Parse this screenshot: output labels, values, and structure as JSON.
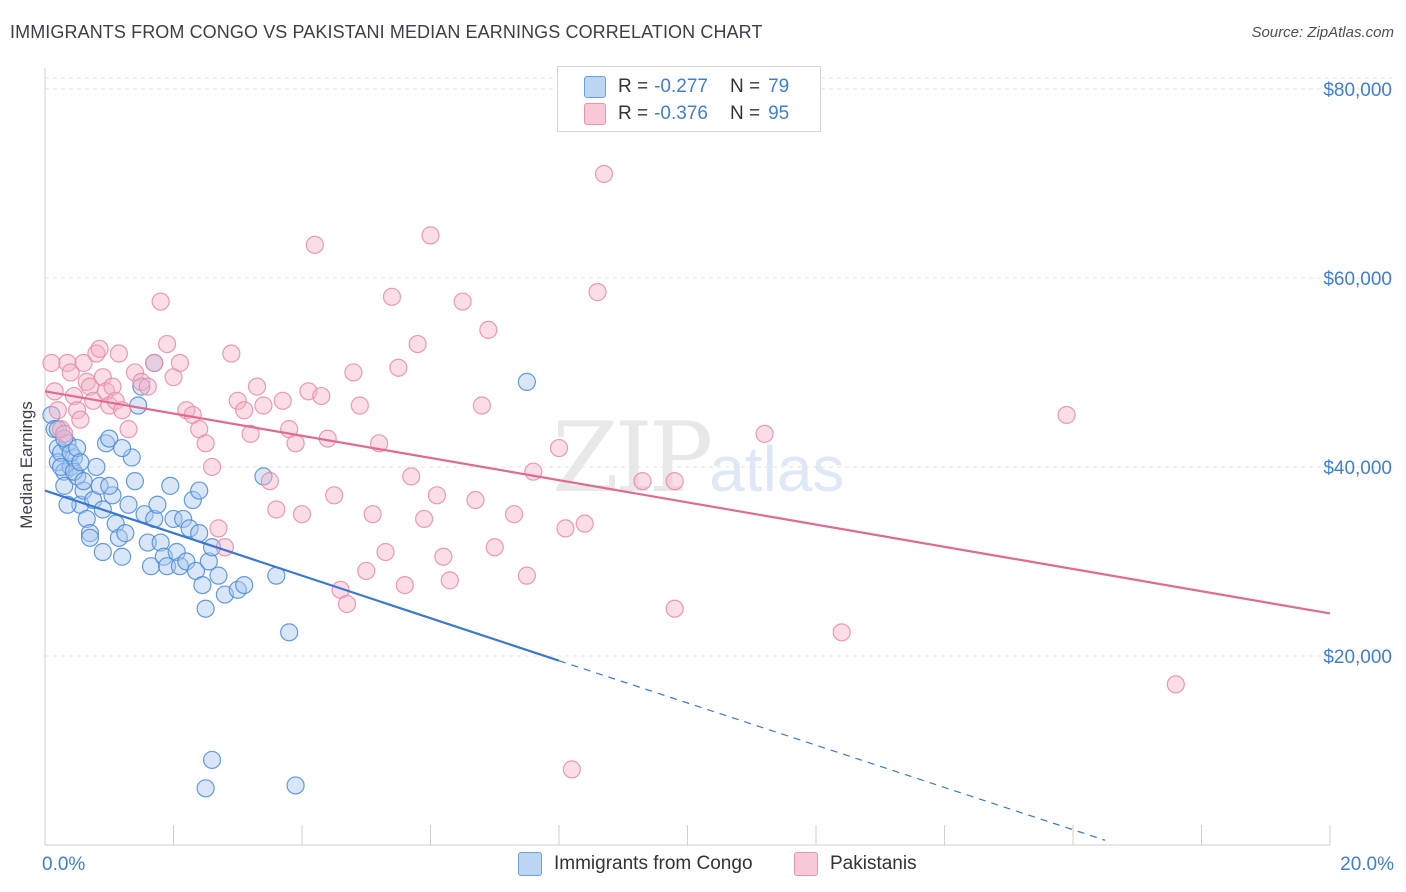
{
  "title": "IMMIGRANTS FROM CONGO VS PAKISTANI MEDIAN EARNINGS CORRELATION CHART",
  "source": "Source: ZipAtlas.com",
  "watermark": {
    "zip": "ZIP",
    "atlas": "atlas"
  },
  "legend": {
    "rows": [
      {
        "r_label": "R =",
        "r_value": "-0.277",
        "n_label": "N =",
        "n_value": "79",
        "color": "#a9c8ef"
      },
      {
        "r_label": "R =",
        "r_value": "-0.376",
        "n_label": "N =",
        "n_value": "95",
        "color": "#f4b3c8"
      }
    ]
  },
  "bottom_legend": {
    "congo": "Immigrants from Congo",
    "pakistanis": "Pakistanis"
  },
  "chart_data": {
    "type": "scatter",
    "ylabel": "Median Earnings",
    "xlim": [
      0,
      20
    ],
    "ylim": [
      0,
      82000
    ],
    "y_ticks": [
      {
        "value": 20000,
        "label": "$20,000"
      },
      {
        "value": 40000,
        "label": "$40,000"
      },
      {
        "value": 60000,
        "label": "$60,000"
      },
      {
        "value": 80000,
        "label": "$80,000"
      }
    ],
    "x_tick_labels": [
      {
        "value": 0,
        "label": "0.0%"
      },
      {
        "value": 20,
        "label": "20.0%"
      }
    ],
    "x_minor_ticks": [
      2,
      4,
      6,
      8,
      10,
      12,
      14,
      16,
      18,
      20
    ],
    "grid": true,
    "series": [
      {
        "name": "Immigrants from Congo",
        "color": "#4a8ad8",
        "fill": "#a9c8ef",
        "trend": {
          "x0": 0,
          "y0": 37500,
          "x1": 8,
          "y1": 19500,
          "dash_to_x": 16.5,
          "dash_to_y": 500,
          "color": "#3a78d4"
        },
        "points": [
          [
            0.1,
            45500
          ],
          [
            0.15,
            44000
          ],
          [
            0.2,
            42000
          ],
          [
            0.2,
            40500
          ],
          [
            0.25,
            41500
          ],
          [
            0.3,
            39500
          ],
          [
            0.3,
            38000
          ],
          [
            0.35,
            42500
          ],
          [
            0.4,
            40000
          ],
          [
            0.45,
            41000
          ],
          [
            0.5,
            39000
          ],
          [
            0.55,
            36000
          ],
          [
            0.6,
            37500
          ],
          [
            0.65,
            34500
          ],
          [
            0.7,
            33000
          ],
          [
            0.75,
            36500
          ],
          [
            0.8,
            40000
          ],
          [
            0.85,
            38000
          ],
          [
            0.9,
            35500
          ],
          [
            0.95,
            42500
          ],
          [
            1.0,
            43000
          ],
          [
            1.05,
            37000
          ],
          [
            1.1,
            34000
          ],
          [
            1.15,
            32500
          ],
          [
            1.2,
            30500
          ],
          [
            1.25,
            33000
          ],
          [
            1.3,
            36000
          ],
          [
            1.35,
            41000
          ],
          [
            1.4,
            38500
          ],
          [
            1.45,
            46500
          ],
          [
            1.5,
            48500
          ],
          [
            1.55,
            35000
          ],
          [
            1.6,
            32000
          ],
          [
            1.65,
            29500
          ],
          [
            1.7,
            34500
          ],
          [
            1.75,
            36000
          ],
          [
            1.8,
            32000
          ],
          [
            1.85,
            30500
          ],
          [
            1.9,
            29500
          ],
          [
            1.95,
            38000
          ],
          [
            2.0,
            34500
          ],
          [
            2.05,
            31000
          ],
          [
            2.1,
            29500
          ],
          [
            2.15,
            34500
          ],
          [
            2.2,
            30000
          ],
          [
            2.25,
            33500
          ],
          [
            2.3,
            36500
          ],
          [
            2.35,
            29000
          ],
          [
            2.4,
            33000
          ],
          [
            2.45,
            27500
          ],
          [
            2.5,
            25000
          ],
          [
            2.55,
            30000
          ],
          [
            2.6,
            31500
          ],
          [
            2.7,
            28500
          ],
          [
            2.8,
            26500
          ],
          [
            0.2,
            44000
          ],
          [
            0.3,
            43000
          ],
          [
            0.25,
            40000
          ],
          [
            0.4,
            41500
          ],
          [
            0.45,
            39500
          ],
          [
            0.5,
            42000
          ],
          [
            0.55,
            40500
          ],
          [
            0.6,
            38500
          ],
          [
            0.35,
            36000
          ],
          [
            0.7,
            32500
          ],
          [
            0.9,
            31000
          ],
          [
            1.0,
            38000
          ],
          [
            1.2,
            42000
          ],
          [
            1.7,
            51000
          ],
          [
            2.4,
            37500
          ],
          [
            3.0,
            27000
          ],
          [
            2.6,
            9000
          ],
          [
            2.5,
            6000
          ],
          [
            3.1,
            27500
          ],
          [
            3.4,
            39000
          ],
          [
            3.6,
            28500
          ],
          [
            3.8,
            22500
          ],
          [
            3.9,
            6300
          ],
          [
            7.5,
            49000
          ]
        ]
      },
      {
        "name": "Pakistanis",
        "color": "#e98aa8",
        "fill": "#f4b3c8",
        "trend": {
          "x0": 0,
          "y0": 48000,
          "x1": 20,
          "y1": 24500,
          "color": "#e06a92"
        },
        "points": [
          [
            0.1,
            51000
          ],
          [
            0.15,
            48000
          ],
          [
            0.2,
            46000
          ],
          [
            0.25,
            44000
          ],
          [
            0.3,
            43500
          ],
          [
            0.35,
            51000
          ],
          [
            0.4,
            50000
          ],
          [
            0.45,
            47500
          ],
          [
            0.5,
            46000
          ],
          [
            0.55,
            45000
          ],
          [
            0.6,
            51000
          ],
          [
            0.65,
            49000
          ],
          [
            0.7,
            48500
          ],
          [
            0.75,
            47000
          ],
          [
            0.8,
            52000
          ],
          [
            0.85,
            52500
          ],
          [
            0.9,
            49500
          ],
          [
            0.95,
            48000
          ],
          [
            1.0,
            46500
          ],
          [
            1.05,
            48500
          ],
          [
            1.1,
            47000
          ],
          [
            1.15,
            52000
          ],
          [
            1.2,
            46000
          ],
          [
            1.3,
            44000
          ],
          [
            1.4,
            50000
          ],
          [
            1.5,
            49000
          ],
          [
            1.6,
            48500
          ],
          [
            1.7,
            51000
          ],
          [
            1.8,
            57500
          ],
          [
            1.9,
            53000
          ],
          [
            2.0,
            49500
          ],
          [
            2.1,
            51000
          ],
          [
            2.2,
            46000
          ],
          [
            2.3,
            45500
          ],
          [
            2.4,
            44000
          ],
          [
            2.5,
            42500
          ],
          [
            2.6,
            40000
          ],
          [
            2.7,
            33500
          ],
          [
            2.8,
            31500
          ],
          [
            2.9,
            52000
          ],
          [
            3.0,
            47000
          ],
          [
            3.1,
            46000
          ],
          [
            3.2,
            43500
          ],
          [
            3.3,
            48500
          ],
          [
            3.4,
            46500
          ],
          [
            3.5,
            38500
          ],
          [
            3.6,
            35500
          ],
          [
            3.7,
            47000
          ],
          [
            3.8,
            44000
          ],
          [
            3.9,
            42500
          ],
          [
            4.0,
            35000
          ],
          [
            4.1,
            48000
          ],
          [
            4.2,
            63500
          ],
          [
            4.3,
            47500
          ],
          [
            4.4,
            43000
          ],
          [
            4.5,
            37000
          ],
          [
            4.6,
            27000
          ],
          [
            4.7,
            25500
          ],
          [
            4.8,
            50000
          ],
          [
            4.9,
            46500
          ],
          [
            5.0,
            29000
          ],
          [
            5.1,
            35000
          ],
          [
            5.2,
            42500
          ],
          [
            5.3,
            31000
          ],
          [
            5.4,
            58000
          ],
          [
            5.5,
            50500
          ],
          [
            5.6,
            27500
          ],
          [
            5.7,
            39000
          ],
          [
            5.8,
            53000
          ],
          [
            5.9,
            34500
          ],
          [
            6.0,
            64500
          ],
          [
            6.1,
            37000
          ],
          [
            6.2,
            30500
          ],
          [
            6.3,
            28000
          ],
          [
            6.5,
            57500
          ],
          [
            6.7,
            36500
          ],
          [
            6.8,
            46500
          ],
          [
            6.9,
            54500
          ],
          [
            7.0,
            31500
          ],
          [
            7.3,
            35000
          ],
          [
            7.5,
            28500
          ],
          [
            7.6,
            39500
          ],
          [
            8.0,
            42000
          ],
          [
            8.1,
            33500
          ],
          [
            8.2,
            8000
          ],
          [
            8.4,
            34000
          ],
          [
            8.6,
            58500
          ],
          [
            8.7,
            71000
          ],
          [
            9.3,
            38500
          ],
          [
            9.8,
            38500
          ],
          [
            9.8,
            25000
          ],
          [
            11.2,
            43500
          ],
          [
            12.4,
            22500
          ],
          [
            15.9,
            45500
          ],
          [
            17.6,
            17000
          ]
        ]
      }
    ]
  }
}
